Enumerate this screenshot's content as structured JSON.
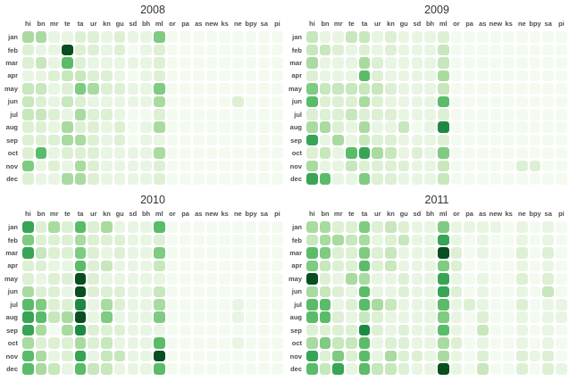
{
  "chart_data": {
    "type": "heatmap",
    "title": "",
    "layout": "2x2 small multiples, one heatmap per year; shared month rows and language-code columns; white gridlines between rounded cells; legend off",
    "x_labels": [
      "hi",
      "bn",
      "mr",
      "te",
      "ta",
      "ur",
      "kn",
      "gu",
      "sd",
      "bh",
      "ml",
      "or",
      "pa",
      "as",
      "new",
      "ks",
      "ne",
      "bpy",
      "sa",
      "pi"
    ],
    "y_labels": [
      "jan",
      "feb",
      "mar",
      "apr",
      "may",
      "jun",
      "jul",
      "aug",
      "sep",
      "oct",
      "nov",
      "dec"
    ],
    "value_scale": "relative intensity 0-9 estimated from green shading; 0 = near-white minimum, 9 = darkest green maximum",
    "colormap": [
      "#f3faf0",
      "#e9f5e3",
      "#ddf0d4",
      "#c7e7bc",
      "#a9dba0",
      "#7ecb81",
      "#5abc69",
      "#37a456",
      "#1e8943",
      "#094e20"
    ],
    "panels": [
      {
        "title": "2008",
        "values": [
          [
            4,
            4,
            1,
            1,
            2,
            2,
            1,
            2,
            1,
            1,
            5,
            0,
            0,
            0,
            0,
            0,
            0,
            0,
            0,
            0
          ],
          [
            2,
            1,
            1,
            9,
            2,
            2,
            1,
            2,
            0,
            1,
            2,
            0,
            0,
            0,
            0,
            0,
            0,
            0,
            0,
            0
          ],
          [
            2,
            3,
            1,
            6,
            2,
            1,
            1,
            1,
            1,
            1,
            2,
            0,
            0,
            0,
            0,
            0,
            0,
            0,
            0,
            0
          ],
          [
            1,
            1,
            2,
            3,
            3,
            2,
            2,
            1,
            0,
            1,
            2,
            0,
            0,
            0,
            0,
            0,
            0,
            0,
            0,
            0
          ],
          [
            3,
            3,
            1,
            2,
            5,
            4,
            2,
            2,
            1,
            1,
            5,
            0,
            0,
            0,
            0,
            0,
            0,
            0,
            0,
            0
          ],
          [
            3,
            2,
            1,
            3,
            2,
            1,
            1,
            1,
            1,
            1,
            4,
            0,
            0,
            0,
            0,
            0,
            2,
            0,
            0,
            0
          ],
          [
            3,
            3,
            2,
            1,
            4,
            2,
            2,
            1,
            0,
            0,
            2,
            0,
            0,
            0,
            0,
            0,
            0,
            0,
            0,
            0
          ],
          [
            2,
            2,
            1,
            4,
            2,
            2,
            1,
            2,
            0,
            1,
            4,
            0,
            0,
            0,
            0,
            0,
            0,
            0,
            0,
            0
          ],
          [
            2,
            2,
            2,
            4,
            4,
            2,
            1,
            2,
            0,
            1,
            1,
            0,
            0,
            0,
            0,
            0,
            0,
            0,
            0,
            0
          ],
          [
            2,
            6,
            1,
            2,
            2,
            2,
            1,
            1,
            1,
            1,
            4,
            0,
            0,
            0,
            0,
            0,
            0,
            0,
            0,
            0
          ],
          [
            5,
            1,
            2,
            1,
            4,
            2,
            1,
            1,
            1,
            1,
            2,
            0,
            0,
            0,
            0,
            0,
            0,
            0,
            0,
            0
          ],
          [
            2,
            1,
            1,
            4,
            4,
            2,
            1,
            1,
            1,
            1,
            2,
            0,
            0,
            0,
            0,
            0,
            0,
            0,
            0,
            0
          ]
        ]
      },
      {
        "title": "2009",
        "values": [
          [
            3,
            1,
            1,
            3,
            3,
            1,
            2,
            1,
            1,
            1,
            2,
            0,
            0,
            0,
            0,
            0,
            0,
            0,
            0,
            0
          ],
          [
            3,
            3,
            2,
            1,
            2,
            1,
            2,
            1,
            1,
            1,
            3,
            0,
            0,
            0,
            0,
            0,
            0,
            0,
            0,
            0
          ],
          [
            4,
            1,
            1,
            1,
            4,
            2,
            1,
            1,
            1,
            1,
            3,
            0,
            0,
            0,
            0,
            0,
            0,
            0,
            0,
            0
          ],
          [
            2,
            1,
            1,
            1,
            6,
            2,
            1,
            1,
            1,
            1,
            4,
            0,
            0,
            0,
            0,
            0,
            0,
            0,
            0,
            0
          ],
          [
            5,
            3,
            3,
            3,
            3,
            3,
            2,
            1,
            1,
            1,
            3,
            0,
            0,
            0,
            0,
            0,
            0,
            0,
            0,
            0
          ],
          [
            6,
            2,
            2,
            2,
            4,
            2,
            1,
            1,
            1,
            1,
            6,
            0,
            0,
            0,
            0,
            0,
            0,
            0,
            0,
            0
          ],
          [
            2,
            2,
            2,
            3,
            2,
            2,
            2,
            1,
            1,
            1,
            2,
            0,
            0,
            0,
            0,
            0,
            0,
            0,
            0,
            0
          ],
          [
            4,
            4,
            2,
            1,
            4,
            1,
            1,
            3,
            0,
            1,
            8,
            0,
            0,
            0,
            0,
            0,
            0,
            0,
            0,
            0
          ],
          [
            7,
            1,
            4,
            1,
            3,
            2,
            2,
            1,
            1,
            1,
            2,
            0,
            0,
            0,
            0,
            0,
            0,
            0,
            0,
            0
          ],
          [
            2,
            3,
            1,
            6,
            7,
            4,
            3,
            1,
            2,
            1,
            5,
            0,
            0,
            0,
            0,
            0,
            0,
            0,
            0,
            0
          ],
          [
            4,
            1,
            1,
            3,
            2,
            2,
            2,
            2,
            1,
            1,
            3,
            0,
            0,
            0,
            0,
            0,
            2,
            2,
            0,
            0
          ],
          [
            7,
            6,
            1,
            1,
            5,
            2,
            2,
            1,
            1,
            1,
            3,
            0,
            0,
            0,
            0,
            0,
            0,
            0,
            0,
            0
          ]
        ]
      },
      {
        "title": "2010",
        "values": [
          [
            7,
            2,
            4,
            2,
            6,
            2,
            4,
            1,
            1,
            1,
            6,
            0,
            0,
            0,
            0,
            0,
            0,
            0,
            0,
            0
          ],
          [
            5,
            2,
            2,
            2,
            4,
            2,
            2,
            2,
            1,
            1,
            2,
            0,
            0,
            0,
            0,
            0,
            0,
            0,
            0,
            0
          ],
          [
            7,
            3,
            2,
            2,
            5,
            2,
            1,
            2,
            1,
            1,
            5,
            0,
            0,
            0,
            0,
            0,
            0,
            0,
            0,
            0
          ],
          [
            2,
            2,
            1,
            1,
            6,
            2,
            3,
            1,
            1,
            1,
            3,
            0,
            0,
            0,
            0,
            0,
            0,
            0,
            0,
            0
          ],
          [
            2,
            1,
            2,
            2,
            9,
            2,
            1,
            1,
            1,
            1,
            1,
            0,
            0,
            0,
            0,
            0,
            0,
            0,
            0,
            0
          ],
          [
            4,
            2,
            2,
            1,
            9,
            2,
            2,
            2,
            1,
            1,
            3,
            0,
            0,
            0,
            0,
            0,
            0,
            0,
            0,
            0
          ],
          [
            6,
            5,
            2,
            2,
            8,
            1,
            4,
            2,
            1,
            1,
            4,
            0,
            0,
            0,
            0,
            0,
            1,
            0,
            0,
            0
          ],
          [
            7,
            6,
            3,
            4,
            9,
            1,
            5,
            1,
            1,
            1,
            5,
            0,
            0,
            0,
            0,
            0,
            1,
            0,
            0,
            0
          ],
          [
            7,
            4,
            0,
            4,
            8,
            2,
            2,
            2,
            1,
            1,
            1,
            0,
            0,
            0,
            0,
            0,
            0,
            0,
            0,
            0
          ],
          [
            4,
            2,
            2,
            2,
            4,
            2,
            3,
            1,
            1,
            1,
            6,
            0,
            0,
            0,
            0,
            0,
            1,
            0,
            0,
            0
          ],
          [
            6,
            4,
            1,
            2,
            7,
            1,
            3,
            3,
            1,
            1,
            9,
            0,
            0,
            0,
            0,
            0,
            0,
            0,
            0,
            0
          ],
          [
            6,
            4,
            3,
            1,
            6,
            3,
            3,
            1,
            1,
            1,
            6,
            0,
            0,
            0,
            0,
            0,
            0,
            0,
            0,
            0
          ]
        ]
      },
      {
        "title": "2011",
        "values": [
          [
            4,
            4,
            2,
            2,
            5,
            2,
            3,
            2,
            1,
            1,
            5,
            1,
            1,
            1,
            1,
            0,
            1,
            0,
            1,
            0
          ],
          [
            3,
            4,
            4,
            3,
            4,
            1,
            2,
            3,
            1,
            1,
            7,
            1,
            0,
            1,
            0,
            0,
            1,
            0,
            1,
            0
          ],
          [
            6,
            5,
            2,
            2,
            5,
            2,
            3,
            1,
            1,
            1,
            9,
            2,
            0,
            1,
            0,
            0,
            2,
            0,
            2,
            0
          ],
          [
            5,
            3,
            2,
            2,
            6,
            2,
            3,
            1,
            1,
            1,
            5,
            2,
            0,
            0,
            0,
            0,
            1,
            0,
            1,
            0
          ],
          [
            9,
            2,
            1,
            4,
            4,
            1,
            1,
            2,
            1,
            1,
            7,
            1,
            0,
            1,
            0,
            0,
            2,
            0,
            2,
            0
          ],
          [
            4,
            3,
            2,
            1,
            6,
            1,
            1,
            2,
            1,
            1,
            7,
            2,
            0,
            1,
            0,
            0,
            1,
            0,
            3,
            0
          ],
          [
            6,
            6,
            1,
            2,
            6,
            4,
            3,
            1,
            1,
            1,
            6,
            1,
            2,
            1,
            0,
            0,
            2,
            0,
            1,
            1
          ],
          [
            6,
            6,
            2,
            1,
            3,
            2,
            1,
            1,
            1,
            1,
            5,
            1,
            0,
            2,
            0,
            0,
            1,
            0,
            1,
            1
          ],
          [
            2,
            2,
            2,
            2,
            8,
            2,
            1,
            2,
            1,
            1,
            6,
            1,
            0,
            3,
            0,
            0,
            1,
            0,
            1,
            0
          ],
          [
            4,
            5,
            3,
            3,
            6,
            1,
            2,
            2,
            1,
            1,
            4,
            2,
            0,
            1,
            0,
            0,
            1,
            0,
            1,
            0
          ],
          [
            7,
            2,
            5,
            2,
            6,
            1,
            4,
            2,
            2,
            1,
            4,
            1,
            0,
            2,
            0,
            0,
            2,
            1,
            2,
            0
          ],
          [
            6,
            3,
            7,
            1,
            6,
            3,
            3,
            2,
            1,
            1,
            9,
            1,
            0,
            3,
            0,
            0,
            2,
            0,
            2,
            1
          ]
        ]
      }
    ]
  }
}
